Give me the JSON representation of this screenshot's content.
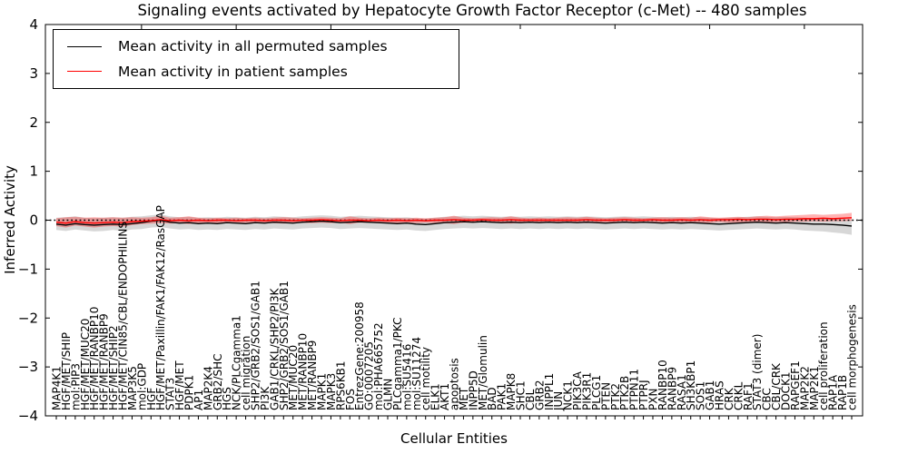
{
  "chart_data": {
    "type": "line",
    "title": "Signaling events activated by Hepatocyte Growth Factor Receptor (c-Met) -- 480 samples",
    "xlabel": "Cellular Entities",
    "ylabel": "Inferred Activity",
    "ylim": [
      -4,
      4
    ],
    "yticks": [
      {
        "v": 4,
        "label": "4"
      },
      {
        "v": 3,
        "label": "3"
      },
      {
        "v": 2,
        "label": "2"
      },
      {
        "v": 1,
        "label": "1"
      },
      {
        "v": 0,
        "label": "0"
      },
      {
        "v": -1,
        "label": "−1"
      },
      {
        "v": -2,
        "label": "−2"
      },
      {
        "v": -3,
        "label": "−3"
      },
      {
        "v": -4,
        "label": "−4"
      }
    ],
    "grid": false,
    "legend_position": "upper left",
    "zero_line": {
      "style": "dotted",
      "color": "#000000",
      "y": 0
    },
    "categories": [
      "MAP4K1",
      "HGF/MET/SHIP",
      "mol:PIP3",
      "HGF/MET/MUC20",
      "HGF/MET/RANBP10",
      "HGF/MET/RANBP9",
      "HGF/MET/SHIP2",
      "HGF/MET/CIN85/CBL/ENDOPHILINS",
      "MAP3K5",
      "mol:GDP",
      "HGF",
      "HGF/MET/Paxillin/FAK1/FAK12/RasGAP",
      "STAT3",
      "HGF/MET",
      "PDPK1",
      "AP1",
      "MAP2K4",
      "GRB2/SHC",
      "HGS",
      "NCK/PLCgamma1",
      "cell migration",
      "SHP2/GRB2/SOS1/GAB1",
      "PI3K",
      "GAB1/CRKL/SHP2/PI3K",
      "SHP2/GRB2/SOS1/GAB1",
      "MET/MUC20",
      "MET/RANBP10",
      "MET/RANBP9",
      "MAPK1",
      "MAPK3",
      "RPS6KB1",
      "FOS",
      "EntrezGene:200958",
      "GO:0007205",
      "mol:PHA665752",
      "GLMN",
      "PLCgamma1/PKC",
      "mol:SU5416",
      "mol:SU11274",
      "cell motility",
      "ELK1",
      "AKT1",
      "apoptosis",
      "MET",
      "INPP5D",
      "MET/Glomulin",
      "BAD",
      "PAK1",
      "MAPK8",
      "SHC1",
      "CBL",
      "GRB2",
      "INPPL1",
      "JUN",
      "NCK1",
      "PIK3CA",
      "PIK3R1",
      "PLCG1",
      "PTEN",
      "PTK2",
      "PTK2B",
      "PTPN11",
      "PTPRJ",
      "PXN",
      "RANBP10",
      "RANBP9",
      "RASA1",
      "SH3KBP1",
      "SOS1",
      "GAB1",
      "HRAS",
      "CRK",
      "CRKL",
      "RAF1",
      "STAT3 (dimer)",
      "CBC",
      "CBL/CRK",
      "DOCK1",
      "RAPGEF1",
      "MAP2K2",
      "MAP2K1",
      "cell proliferation",
      "RAP1A",
      "RAP1B",
      "cell morphogenesis"
    ],
    "series": [
      {
        "name": "Mean activity in all permuted samples",
        "color": "#000000",
        "band_color": "rgba(130,130,130,0.32)",
        "values": [
          -0.08,
          -0.1,
          -0.07,
          -0.09,
          -0.1,
          -0.09,
          -0.08,
          -0.09,
          -0.07,
          -0.05,
          -0.02,
          0.0,
          -0.04,
          -0.06,
          -0.05,
          -0.07,
          -0.06,
          -0.07,
          -0.05,
          -0.06,
          -0.07,
          -0.05,
          -0.06,
          -0.04,
          -0.05,
          -0.06,
          -0.04,
          -0.03,
          -0.02,
          -0.03,
          -0.05,
          -0.04,
          -0.03,
          -0.04,
          -0.05,
          -0.06,
          -0.07,
          -0.06,
          -0.08,
          -0.09,
          -0.07,
          -0.05,
          -0.04,
          -0.03,
          -0.04,
          -0.03,
          -0.04,
          -0.05,
          -0.04,
          -0.05,
          -0.04,
          -0.05,
          -0.04,
          -0.05,
          -0.04,
          -0.05,
          -0.04,
          -0.05,
          -0.06,
          -0.05,
          -0.04,
          -0.05,
          -0.04,
          -0.05,
          -0.06,
          -0.05,
          -0.06,
          -0.05,
          -0.06,
          -0.07,
          -0.08,
          -0.07,
          -0.06,
          -0.05,
          -0.04,
          -0.05,
          -0.06,
          -0.05,
          -0.06,
          -0.07,
          -0.08,
          -0.08,
          -0.09,
          -0.1,
          -0.12
        ],
        "band_upper": [
          0.05,
          0.06,
          0.08,
          0.05,
          0.04,
          0.05,
          0.06,
          0.05,
          0.07,
          0.08,
          0.1,
          0.12,
          0.08,
          0.06,
          0.07,
          0.05,
          0.06,
          0.05,
          0.07,
          0.06,
          0.05,
          0.07,
          0.06,
          0.08,
          0.07,
          0.06,
          0.08,
          0.09,
          0.1,
          0.09,
          0.07,
          0.08,
          0.09,
          0.08,
          0.07,
          0.06,
          0.05,
          0.06,
          0.04,
          0.03,
          0.05,
          0.07,
          0.08,
          0.09,
          0.08,
          0.09,
          0.08,
          0.07,
          0.08,
          0.07,
          0.08,
          0.07,
          0.08,
          0.07,
          0.08,
          0.07,
          0.08,
          0.07,
          0.06,
          0.07,
          0.08,
          0.07,
          0.08,
          0.07,
          0.06,
          0.07,
          0.06,
          0.07,
          0.06,
          0.05,
          0.04,
          0.05,
          0.06,
          0.07,
          0.08,
          0.07,
          0.06,
          0.07,
          0.06,
          0.05,
          0.04,
          0.04,
          0.03,
          0.02,
          0.01
        ],
        "band_lower": [
          -0.2,
          -0.22,
          -0.19,
          -0.21,
          -0.23,
          -0.22,
          -0.2,
          -0.22,
          -0.19,
          -0.18,
          -0.15,
          -0.14,
          -0.17,
          -0.19,
          -0.18,
          -0.2,
          -0.19,
          -0.2,
          -0.18,
          -0.19,
          -0.2,
          -0.18,
          -0.19,
          -0.17,
          -0.18,
          -0.19,
          -0.17,
          -0.16,
          -0.15,
          -0.16,
          -0.18,
          -0.17,
          -0.16,
          -0.17,
          -0.18,
          -0.19,
          -0.2,
          -0.19,
          -0.21,
          -0.22,
          -0.2,
          -0.18,
          -0.17,
          -0.16,
          -0.17,
          -0.16,
          -0.17,
          -0.18,
          -0.17,
          -0.18,
          -0.17,
          -0.18,
          -0.17,
          -0.18,
          -0.17,
          -0.18,
          -0.17,
          -0.18,
          -0.19,
          -0.18,
          -0.17,
          -0.18,
          -0.17,
          -0.18,
          -0.19,
          -0.18,
          -0.19,
          -0.18,
          -0.19,
          -0.2,
          -0.21,
          -0.2,
          -0.19,
          -0.18,
          -0.17,
          -0.18,
          -0.19,
          -0.18,
          -0.19,
          -0.21,
          -0.22,
          -0.23,
          -0.25,
          -0.27,
          -0.3
        ]
      },
      {
        "name": "Mean activity in patient samples",
        "color": "#ff0000",
        "band_color": "rgba(255,0,0,0.30)",
        "values": [
          -0.04,
          -0.06,
          -0.03,
          -0.05,
          -0.06,
          -0.05,
          -0.04,
          -0.05,
          -0.03,
          -0.02,
          -0.01,
          0.01,
          -0.01,
          0.0,
          -0.01,
          0.0,
          -0.01,
          0.0,
          0.0,
          -0.01,
          0.0,
          0.0,
          -0.01,
          0.0,
          0.0,
          -0.01,
          0.0,
          0.0,
          0.01,
          0.0,
          -0.01,
          0.0,
          0.0,
          -0.01,
          0.0,
          -0.01,
          0.0,
          -0.01,
          0.0,
          -0.01,
          0.0,
          0.0,
          0.01,
          0.0,
          0.0,
          0.01,
          0.0,
          0.0,
          0.01,
          0.0,
          0.0,
          0.0,
          0.0,
          0.0,
          0.0,
          0.0,
          0.01,
          0.0,
          0.0,
          0.0,
          0.01,
          0.0,
          0.0,
          0.01,
          0.0,
          0.0,
          0.01,
          0.0,
          0.01,
          0.0,
          0.01,
          0.01,
          0.02,
          0.01,
          0.02,
          0.02,
          0.01,
          0.02,
          0.02,
          0.03,
          0.03,
          0.04,
          0.03,
          0.04,
          0.05
        ],
        "band_upper": [
          0.04,
          0.06,
          0.07,
          0.05,
          0.06,
          0.05,
          0.06,
          0.05,
          0.06,
          0.05,
          0.06,
          0.09,
          0.05,
          0.06,
          0.08,
          0.05,
          0.04,
          0.05,
          0.04,
          0.05,
          0.04,
          0.05,
          0.04,
          0.05,
          0.06,
          0.05,
          0.04,
          0.05,
          0.06,
          0.05,
          0.04,
          0.08,
          0.05,
          0.04,
          0.05,
          0.04,
          0.05,
          0.04,
          0.05,
          0.04,
          0.05,
          0.06,
          0.09,
          0.05,
          0.04,
          0.05,
          0.06,
          0.05,
          0.08,
          0.05,
          0.04,
          0.05,
          0.04,
          0.05,
          0.06,
          0.05,
          0.07,
          0.05,
          0.04,
          0.05,
          0.06,
          0.05,
          0.04,
          0.05,
          0.06,
          0.05,
          0.06,
          0.05,
          0.08,
          0.06,
          0.05,
          0.06,
          0.07,
          0.06,
          0.08,
          0.09,
          0.08,
          0.09,
          0.1,
          0.11,
          0.12,
          0.11,
          0.12,
          0.13,
          0.15
        ],
        "band_lower": [
          -0.12,
          -0.15,
          -0.11,
          -0.13,
          -0.15,
          -0.13,
          -0.12,
          -0.13,
          -0.1,
          -0.08,
          -0.07,
          -0.06,
          -0.07,
          -0.06,
          -0.08,
          -0.06,
          -0.05,
          -0.06,
          -0.05,
          -0.06,
          -0.05,
          -0.06,
          -0.05,
          -0.06,
          -0.07,
          -0.06,
          -0.05,
          -0.06,
          -0.05,
          -0.06,
          -0.05,
          -0.08,
          -0.05,
          -0.05,
          -0.06,
          -0.05,
          -0.06,
          -0.05,
          -0.06,
          -0.05,
          -0.06,
          -0.06,
          -0.08,
          -0.05,
          -0.05,
          -0.04,
          -0.05,
          -0.06,
          -0.07,
          -0.05,
          -0.04,
          -0.05,
          -0.04,
          -0.05,
          -0.05,
          -0.05,
          -0.06,
          -0.05,
          -0.04,
          -0.05,
          -0.05,
          -0.04,
          -0.04,
          -0.05,
          -0.05,
          -0.04,
          -0.05,
          -0.04,
          -0.06,
          -0.05,
          -0.04,
          -0.05,
          -0.05,
          -0.04,
          -0.04,
          -0.05,
          -0.04,
          -0.04,
          -0.03,
          -0.03,
          -0.02,
          -0.03,
          -0.02,
          -0.02,
          -0.01
        ]
      }
    ]
  }
}
